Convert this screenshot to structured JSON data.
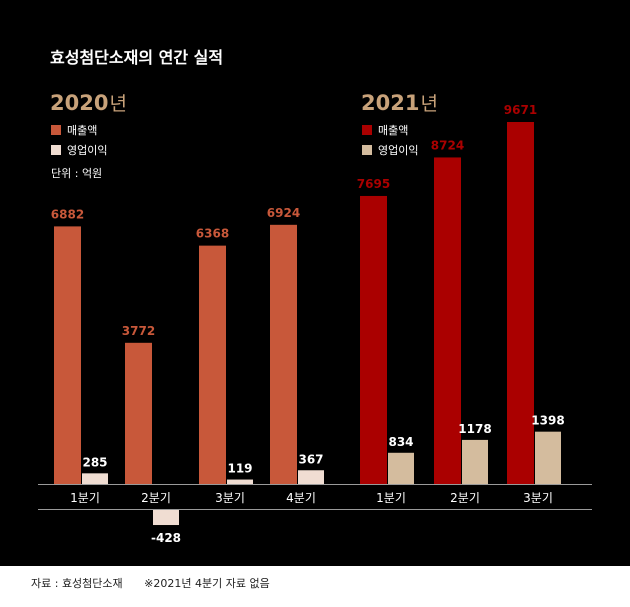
{
  "title": "효성첨단소재의 연간 실적",
  "unit": "단위 : 억원",
  "footer": {
    "source": "자료 : 효성첨단소재",
    "note": "※2021년 4분기 자료 없음"
  },
  "colors": {
    "revenue_2020": "#c8583a",
    "profit_2020": "#f0ddd2",
    "revenue_2021": "#aa0000",
    "profit_2021": "#d4bc9e",
    "year_label": "#c8a27a"
  },
  "chart_data": [
    {
      "type": "bar",
      "year_num": "2020",
      "year_suffix": "년",
      "categories": [
        "1분기",
        "2분기",
        "3분기",
        "4분기"
      ],
      "series": [
        {
          "name": "매출액",
          "values": [
            6882,
            3772,
            6368,
            6924
          ]
        },
        {
          "name": "영업이익",
          "values": [
            285,
            -428,
            119,
            367
          ]
        }
      ],
      "legend_position": "top-left"
    },
    {
      "type": "bar",
      "year_num": "2021",
      "year_suffix": "년",
      "categories": [
        "1분기",
        "2분기",
        "3분기"
      ],
      "series": [
        {
          "name": "매출액",
          "values": [
            7695,
            8724,
            9671
          ]
        },
        {
          "name": "영업이익",
          "values": [
            834,
            1178,
            1398
          ]
        }
      ],
      "legend_position": "top-left"
    }
  ]
}
